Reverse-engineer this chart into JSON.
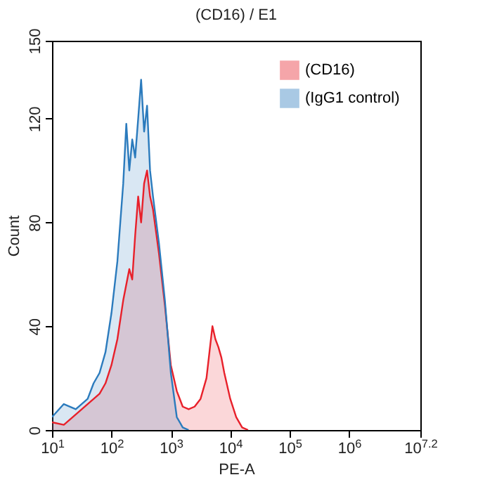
{
  "chart_data": {
    "type": "area",
    "title": "(CD16) / E1",
    "xlabel": "PE-A",
    "ylabel": "Count",
    "log": "x",
    "grid": false,
    "legend": "top right",
    "marker": "none",
    "xlim": [
      10,
      15848932
    ],
    "xticks": [
      {
        "value": 10,
        "label": "10$^{1}$"
      },
      {
        "value": 100,
        "label": "10$^{2}$"
      },
      {
        "value": 1000,
        "label": "10$^{3}$"
      },
      {
        "value": 10000,
        "label": "10$^{4}$"
      },
      {
        "value": 100000,
        "label": "10$^{5}$"
      },
      {
        "value": 1000000,
        "label": "10$^{6}$"
      },
      {
        "value": 15848932,
        "label": "10$^{7.2}$"
      }
    ],
    "ylim": [
      0,
      150
    ],
    "yticks": [
      0,
      40,
      80,
      120,
      150
    ],
    "series": [
      {
        "name": "(CD16)",
        "color": "#e8202a",
        "x": [
          10,
          15.8,
          25.1,
          39.8,
          63.1,
          79.4,
          100,
          126,
          158,
          200,
          224,
          251,
          282,
          316,
          355,
          398,
          447,
          501,
          631,
          794,
          1000,
          1259,
          1585,
          1995,
          2512,
          3162,
          3981,
          4467,
          5012,
          5623,
          6310,
          7079,
          7943,
          10000,
          12589,
          15849,
          19953
        ],
        "values": [
          3,
          2,
          6,
          10,
          14,
          18,
          25,
          35,
          50,
          62,
          58,
          75,
          90,
          80,
          95,
          100,
          90,
          85,
          68,
          48,
          25,
          15,
          9,
          8,
          9,
          12,
          20,
          30,
          40,
          35,
          32,
          28,
          22,
          12,
          5,
          1,
          0
        ]
      },
      {
        "name": "(IgG1 control)",
        "color": "#2b7bbd",
        "x": [
          10,
          15.8,
          25.1,
          39.8,
          50.1,
          63.1,
          79.4,
          100,
          126,
          141,
          158,
          178,
          200,
          224,
          251,
          282,
          316,
          355,
          398,
          447,
          501,
          631,
          794,
          1000,
          1259,
          1585,
          1995
        ],
        "values": [
          5,
          10,
          8,
          12,
          18,
          22,
          30,
          45,
          65,
          80,
          95,
          118,
          100,
          112,
          105,
          120,
          135,
          115,
          125,
          100,
          90,
          72,
          50,
          22,
          5,
          1,
          0
        ]
      }
    ]
  }
}
